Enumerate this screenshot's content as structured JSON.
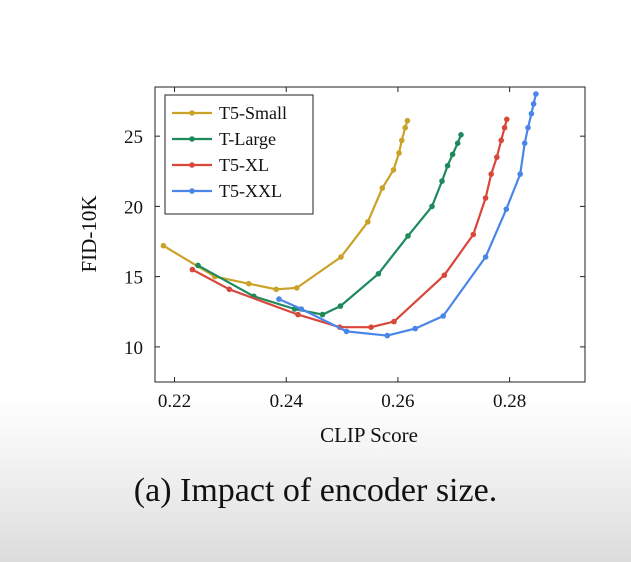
{
  "caption": "(a) Impact of encoder size.",
  "chart_data": {
    "type": "line",
    "title": "",
    "xlabel": "CLIP Score",
    "ylabel": "FID-10K",
    "xlim": [
      0.2165,
      0.2935
    ],
    "ylim": [
      7.5,
      28.5
    ],
    "xticks": [
      0.22,
      0.24,
      0.26,
      0.28
    ],
    "xtick_labels": [
      "0.22",
      "0.24",
      "0.26",
      "0.28"
    ],
    "yticks": [
      10,
      15,
      20,
      25
    ],
    "ytick_labels": [
      "10",
      "15",
      "20",
      "25"
    ],
    "grid": false,
    "legend_position": "top-left",
    "series": [
      {
        "name": "T5-Small",
        "color": "#c9a227",
        "points": [
          [
            0.218,
            17.2
          ],
          [
            0.2272,
            15.0
          ],
          [
            0.2333,
            14.5
          ],
          [
            0.2382,
            14.1
          ],
          [
            0.2419,
            14.2
          ],
          [
            0.2498,
            16.4
          ],
          [
            0.2546,
            18.9
          ],
          [
            0.2572,
            21.3
          ],
          [
            0.2592,
            22.6
          ],
          [
            0.2602,
            23.8
          ],
          [
            0.2607,
            24.7
          ],
          [
            0.2613,
            25.6
          ],
          [
            0.2617,
            26.1
          ]
        ]
      },
      {
        "name": "T-Large",
        "color": "#1e8a5c",
        "points": [
          [
            0.2242,
            15.8
          ],
          [
            0.2342,
            13.6
          ],
          [
            0.2415,
            12.7
          ],
          [
            0.2465,
            12.3
          ],
          [
            0.2497,
            12.9
          ],
          [
            0.2565,
            15.2
          ],
          [
            0.2618,
            17.9
          ],
          [
            0.2661,
            20.0
          ],
          [
            0.2679,
            21.8
          ],
          [
            0.2689,
            22.9
          ],
          [
            0.2698,
            23.7
          ],
          [
            0.2707,
            24.5
          ],
          [
            0.2713,
            25.1
          ]
        ]
      },
      {
        "name": "T5-XL",
        "color": "#d9473b",
        "points": [
          [
            0.2232,
            15.5
          ],
          [
            0.2298,
            14.1
          ],
          [
            0.2421,
            12.3
          ],
          [
            0.2496,
            11.4
          ],
          [
            0.2552,
            11.4
          ],
          [
            0.2593,
            11.8
          ],
          [
            0.2683,
            15.1
          ],
          [
            0.2735,
            18.0
          ],
          [
            0.2757,
            20.6
          ],
          [
            0.2767,
            22.3
          ],
          [
            0.2777,
            23.5
          ],
          [
            0.2785,
            24.7
          ],
          [
            0.2791,
            25.6
          ],
          [
            0.2795,
            26.2
          ]
        ]
      },
      {
        "name": "T5-XXL",
        "color": "#4a86e8",
        "points": [
          [
            0.2387,
            13.4
          ],
          [
            0.2427,
            12.7
          ],
          [
            0.2508,
            11.1
          ],
          [
            0.2581,
            10.8
          ],
          [
            0.2631,
            11.3
          ],
          [
            0.2681,
            12.2
          ],
          [
            0.2757,
            16.4
          ],
          [
            0.2794,
            19.8
          ],
          [
            0.2819,
            22.3
          ],
          [
            0.2827,
            24.5
          ],
          [
            0.2833,
            25.6
          ],
          [
            0.2839,
            26.6
          ],
          [
            0.2843,
            27.3
          ],
          [
            0.2847,
            28.0
          ]
        ]
      }
    ]
  }
}
